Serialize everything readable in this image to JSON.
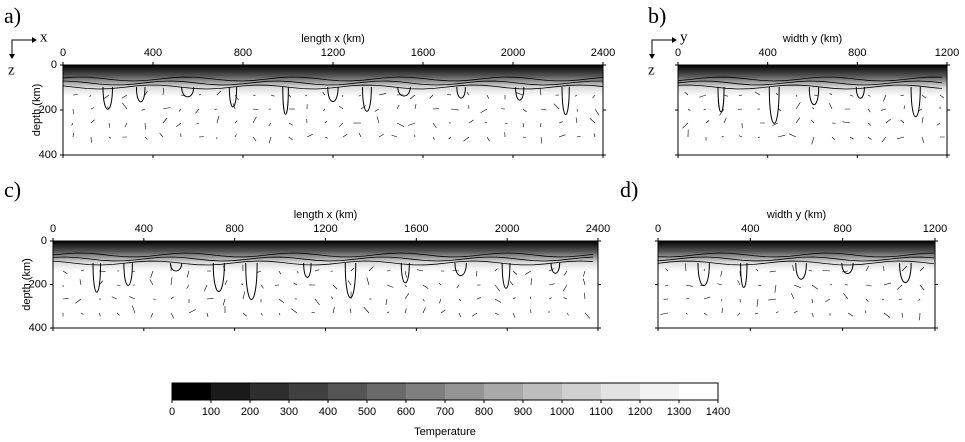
{
  "chart_data": [
    {
      "type": "field",
      "panel": "a)",
      "xlabel": "length x (km)",
      "ylabel": "depth (km)",
      "axis_x": "x",
      "axis_z": "z",
      "xlim": [
        0,
        2400
      ],
      "xticks": [
        0,
        400,
        800,
        1200,
        1600,
        2000,
        2400
      ],
      "ylim": [
        0,
        400
      ],
      "yticks": [
        0,
        200,
        400
      ],
      "ytick_labels": true
    },
    {
      "type": "field",
      "panel": "b)",
      "xlabel": "width y (km)",
      "axis_x": "y",
      "axis_z": "z",
      "xlim": [
        0,
        1200
      ],
      "xticks": [
        0,
        400,
        800,
        1200
      ],
      "ylim": [
        0,
        400
      ],
      "yticks": [
        0,
        200,
        400
      ],
      "ytick_labels": false
    },
    {
      "type": "field",
      "panel": "c)",
      "xlabel": "length x (km)",
      "ylabel": "depth (km)",
      "xlim": [
        0,
        2400
      ],
      "xticks": [
        0,
        400,
        800,
        1200,
        1600,
        2000,
        2400
      ],
      "ylim": [
        0,
        400
      ],
      "yticks": [
        0,
        200,
        400
      ],
      "ytick_labels": true
    },
    {
      "type": "field",
      "panel": "d)",
      "xlabel": "width y (km)",
      "xlim": [
        0,
        1200
      ],
      "xticks": [
        0,
        400,
        800,
        1200
      ],
      "ylim": [
        0,
        400
      ],
      "yticks": [
        0,
        200,
        400
      ],
      "ytick_labels": false
    },
    {
      "type": "colorbar",
      "title": "Temperature",
      "xlim": [
        0,
        1400
      ],
      "xticks": [
        0,
        100,
        200,
        300,
        400,
        500,
        600,
        700,
        800,
        900,
        1000,
        1100,
        1200,
        1300,
        1400
      ],
      "colors": [
        "#000000",
        "#1a1a1a",
        "#2e2e2e",
        "#404040",
        "#555555",
        "#6a6a6a",
        "#7f7f7f",
        "#949494",
        "#a9a9a9",
        "#bdbdbd",
        "#d0d0d0",
        "#e2e2e2",
        "#f2f2f2",
        "#ffffff"
      ]
    }
  ]
}
